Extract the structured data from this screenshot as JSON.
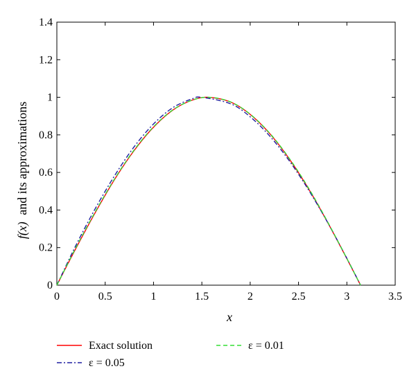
{
  "chart_data": {
    "type": "line",
    "title": "",
    "xlabel": "x",
    "ylabel_fx": "f(x)",
    "ylabel_rest": "and its approximations",
    "xlim": [
      0,
      3.5
    ],
    "ylim": [
      0,
      1.4
    ],
    "grid": false,
    "legend_placement": "bottom",
    "xticks": [
      "0",
      "0.5",
      "1",
      "1.5",
      "2",
      "2.5",
      "3",
      "3.5"
    ],
    "yticks": [
      "0",
      "0.2",
      "0.4",
      "0.6",
      "0.8",
      "1",
      "1.2",
      "1.4"
    ],
    "series": [
      {
        "name": "Exact solution",
        "color": "#ff0000",
        "style": "solid",
        "x": [
          0,
          0.2,
          0.4,
          0.6,
          0.8,
          1.0,
          1.2,
          1.4,
          1.5708,
          1.8,
          2.0,
          2.2,
          2.4,
          2.6,
          2.8,
          3.0,
          3.1416
        ],
        "y": [
          0,
          0.199,
          0.389,
          0.565,
          0.717,
          0.841,
          0.932,
          0.985,
          1.0,
          0.974,
          0.909,
          0.808,
          0.675,
          0.516,
          0.335,
          0.141,
          0
        ]
      },
      {
        "name": "ε = 0.05",
        "color": "#1f1fa0",
        "style": "dashdot",
        "x": [
          0,
          0.2,
          0.4,
          0.6,
          0.8,
          1.0,
          1.2,
          1.4,
          1.5,
          1.8,
          2.0,
          2.2,
          2.4,
          2.6,
          2.8,
          3.0,
          3.1416
        ],
        "y": [
          0,
          0.215,
          0.41,
          0.585,
          0.737,
          0.858,
          0.945,
          0.992,
          1.0,
          0.965,
          0.896,
          0.795,
          0.665,
          0.51,
          0.335,
          0.143,
          0
        ]
      },
      {
        "name": "ε = 0.01",
        "color": "#33dd33",
        "style": "dashed",
        "x": [
          0,
          0.2,
          0.4,
          0.6,
          0.8,
          1.0,
          1.2,
          1.4,
          1.58,
          1.8,
          2.0,
          2.2,
          2.4,
          2.6,
          2.8,
          3.0,
          3.1416
        ],
        "y": [
          0,
          0.203,
          0.393,
          0.568,
          0.72,
          0.843,
          0.933,
          0.985,
          1.0,
          0.975,
          0.91,
          0.81,
          0.678,
          0.52,
          0.338,
          0.142,
          0
        ]
      }
    ]
  }
}
